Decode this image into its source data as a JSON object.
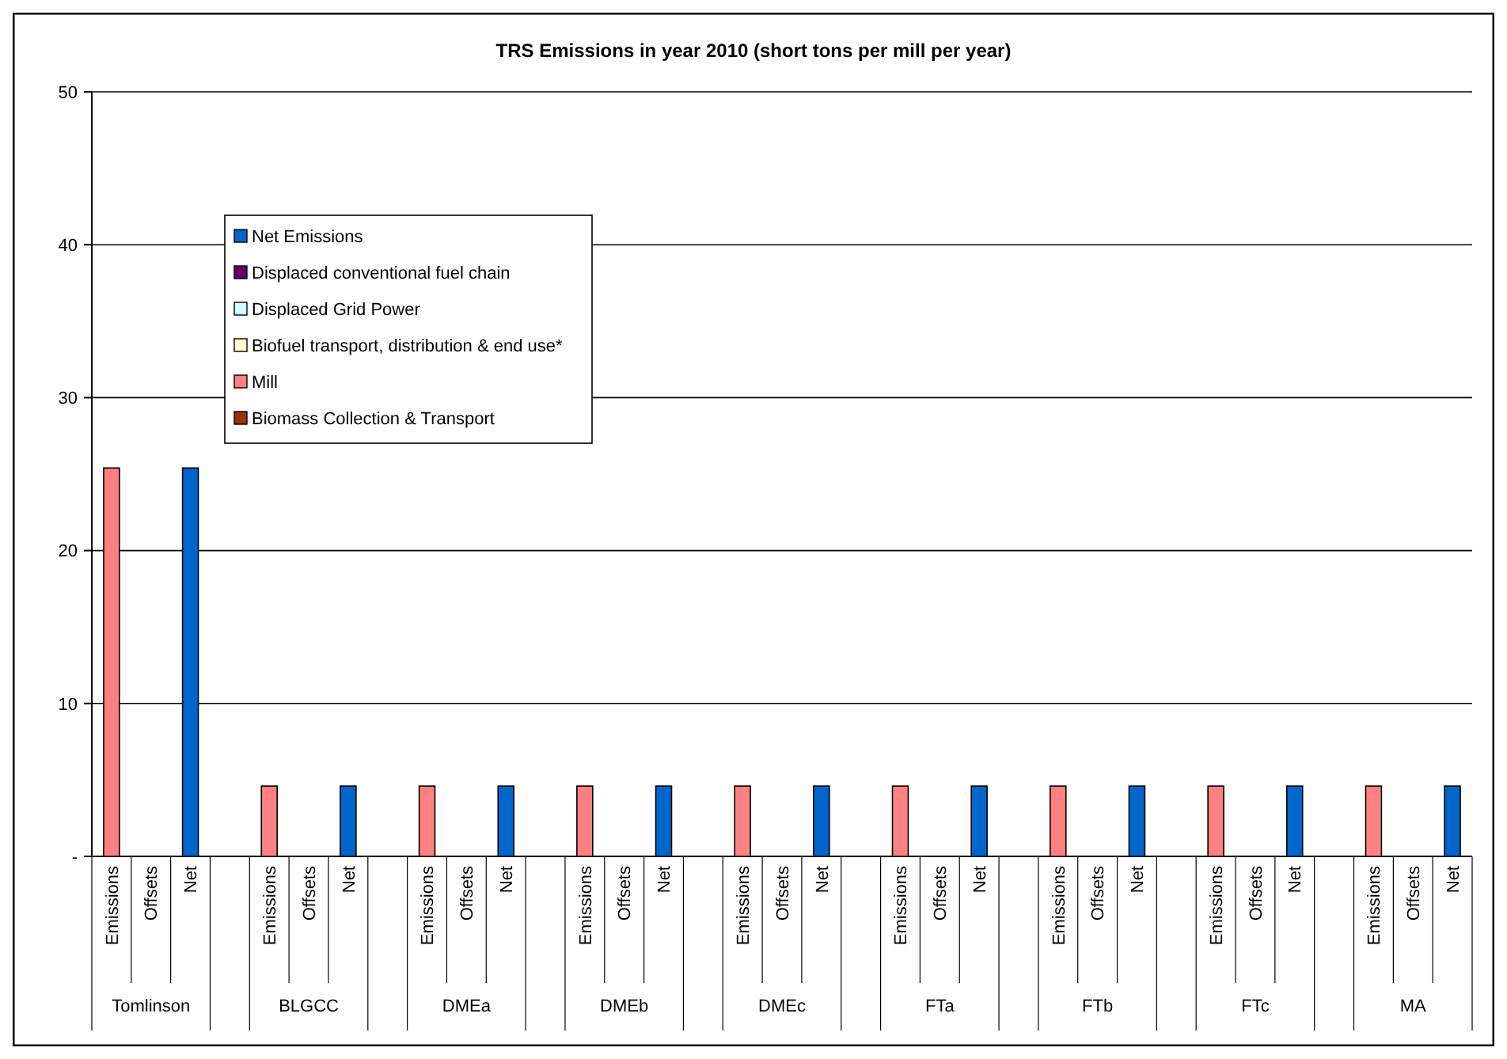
{
  "chart_data": {
    "type": "bar",
    "stacked": true,
    "title": "TRS Emissions in year 2010 (short tons per mill per year)",
    "categories": [
      "Emissions",
      "Offsets",
      "Net",
      null,
      "Emissions",
      "Offsets",
      "Net",
      null,
      "Emissions",
      "Offsets",
      "Net",
      null,
      "Emissions",
      "Offsets",
      "Net",
      null,
      "Emissions",
      "Offsets",
      "Net",
      null,
      "Emissions",
      "Offsets",
      "Net",
      null,
      "Emissions",
      "Offsets",
      "Net",
      null,
      "Emissions",
      "Offsets",
      "Net",
      null,
      "Emissions",
      "Offsets",
      "Net"
    ],
    "annotations": [
      "Tomlinson",
      "BLGCC",
      "DMEa",
      "DMEb",
      "DMEc",
      "FTa",
      "FTb",
      "FTc",
      "MA"
    ],
    "series": [
      {
        "name": "Biomass Collection & Transport",
        "color": "#993300",
        "values": [
          null,
          null,
          null,
          null,
          null,
          null,
          null,
          null,
          null,
          null,
          null,
          null,
          null,
          null,
          null,
          null,
          null,
          null,
          null,
          null,
          null,
          null,
          null,
          null,
          null,
          null,
          null,
          null,
          null,
          null,
          null,
          null,
          null,
          null,
          null
        ]
      },
      {
        "name": "Mill",
        "color": "#ff8080",
        "values": [
          25.4,
          null,
          null,
          null,
          4.6,
          null,
          null,
          null,
          4.6,
          null,
          null,
          null,
          4.6,
          null,
          null,
          null,
          4.6,
          null,
          null,
          null,
          4.6,
          null,
          null,
          null,
          4.6,
          null,
          null,
          null,
          4.6,
          null,
          null,
          null,
          4.6,
          null,
          null
        ]
      },
      {
        "name": "Biofuel transport, distribution & end use*",
        "color": "#ffffcc",
        "values": [
          null,
          null,
          null,
          null,
          null,
          null,
          null,
          null,
          null,
          null,
          null,
          null,
          null,
          null,
          null,
          null,
          null,
          null,
          null,
          null,
          null,
          null,
          null,
          null,
          null,
          null,
          null,
          null,
          null,
          null,
          null,
          null,
          null,
          null,
          null
        ]
      },
      {
        "name": "Displaced Grid Power",
        "color": "#ccffff",
        "values": [
          null,
          null,
          null,
          null,
          null,
          null,
          null,
          null,
          null,
          null,
          null,
          null,
          null,
          null,
          null,
          null,
          null,
          null,
          null,
          null,
          null,
          null,
          null,
          null,
          null,
          null,
          null,
          null,
          null,
          null,
          null,
          null,
          null,
          null,
          null
        ]
      },
      {
        "name": "Displaced conventional fuel chain",
        "color": "#660066",
        "values": [
          null,
          null,
          null,
          null,
          null,
          null,
          null,
          null,
          null,
          null,
          null,
          null,
          null,
          null,
          null,
          null,
          null,
          null,
          null,
          null,
          null,
          null,
          null,
          null,
          null,
          null,
          null,
          null,
          null,
          null,
          null,
          null,
          null,
          null,
          null
        ]
      },
      {
        "name": "Net Emissions",
        "color": "#0066cc",
        "values": [
          null,
          null,
          25.4,
          null,
          null,
          null,
          4.6,
          null,
          null,
          null,
          4.6,
          null,
          null,
          null,
          4.6,
          null,
          null,
          null,
          4.6,
          null,
          null,
          null,
          4.6,
          null,
          null,
          null,
          4.6,
          null,
          null,
          null,
          4.6,
          null,
          null,
          null,
          4.6
        ]
      }
    ],
    "ylim": [
      0,
      50
    ],
    "yticks": [
      {
        "value": 0,
        "label": "-"
      },
      10,
      20,
      30,
      40,
      50
    ],
    "grid": "y",
    "legend": "top left"
  }
}
